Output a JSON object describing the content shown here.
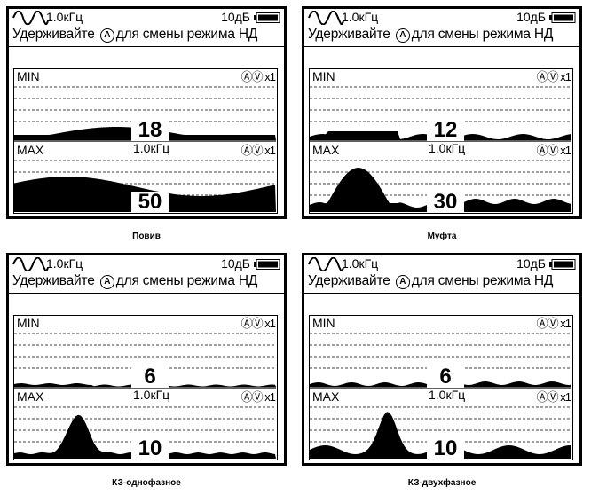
{
  "panels": [
    {
      "frequency": "1.0кГц",
      "gain": "10дБ",
      "hint_before": "Удерживайте",
      "hint_key": "A",
      "hint_after": "для смены режима НД",
      "min_label": "MIN",
      "max_label": "MAX",
      "max_frequency": "1.0кГц",
      "scale": "x1",
      "min_value": "18",
      "max_value": "50",
      "caption": "Повив"
    },
    {
      "frequency": "1.0кГц",
      "gain": "10дБ",
      "hint_before": "Удерживайте",
      "hint_key": "A",
      "hint_after": "для смены режима НД",
      "min_label": "MIN",
      "max_label": "MAX",
      "max_frequency": "1.0кГц",
      "scale": "x1",
      "min_value": "12",
      "max_value": "30",
      "caption": "Муфта"
    },
    {
      "frequency": "1.0кГц",
      "gain": "10дБ",
      "hint_before": "Удерживайте",
      "hint_key": "A",
      "hint_after": "для смены режима НД",
      "min_label": "MIN",
      "max_label": "MAX",
      "max_frequency": "1.0кГц",
      "scale": "x1",
      "min_value": "6",
      "max_value": "10",
      "caption": "КЗ-однофазное"
    },
    {
      "frequency": "1.0кГц",
      "gain": "10дБ",
      "hint_before": "Удерживайте",
      "hint_key": "A",
      "hint_after": "для смены режима НД",
      "min_label": "MIN",
      "max_label": "MAX",
      "max_frequency": "1.0кГц",
      "scale": "x1",
      "min_value": "6",
      "max_value": "10",
      "caption": "КЗ-двухфазное"
    }
  ],
  "colors": {
    "ink": "#000000",
    "background": "#ffffff"
  },
  "icons": [
    "wave-icon",
    "battery-icon",
    "circle-a-icon",
    "up-down-arrows-icon"
  ]
}
